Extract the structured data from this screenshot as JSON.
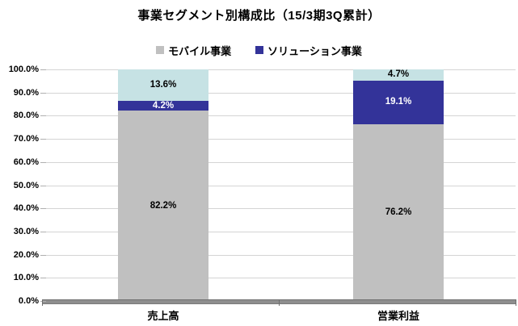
{
  "chart_data": {
    "type": "stacked-bar",
    "title": "事業セグメント別構成比（15/3期3Q累計）",
    "categories": [
      "売上高",
      "営業利益"
    ],
    "series": [
      {
        "name": "モバイル事業",
        "color": "#c0c0c0",
        "text_color": "#000000",
        "values": [
          82.2,
          76.2
        ],
        "labels": [
          "82.2%",
          "76.2%"
        ],
        "in_legend": true
      },
      {
        "name": "ソリューション事業",
        "color": "#333399",
        "text_color": "#ffffff",
        "values": [
          4.2,
          19.1
        ],
        "labels": [
          "4.2%",
          "19.1%"
        ],
        "in_legend": true
      },
      {
        "name": "",
        "color": "#c6e2e4",
        "text_color": "#000000",
        "values": [
          13.6,
          4.7
        ],
        "labels": [
          "13.6%",
          "4.7%"
        ],
        "in_legend": false
      }
    ],
    "ylim": [
      0,
      100
    ],
    "yticks": [
      "100.0%",
      "90.0%",
      "80.0%",
      "70.0%",
      "60.0%",
      "50.0%",
      "40.0%",
      "30.0%",
      "20.0%",
      "10.0%",
      "0.0%"
    ],
    "grid": true,
    "legend_position": "top-center",
    "colors": {
      "gridline": "#d4d4d4",
      "axis_baseline": "#8e8e8e",
      "text": "#000000"
    }
  }
}
